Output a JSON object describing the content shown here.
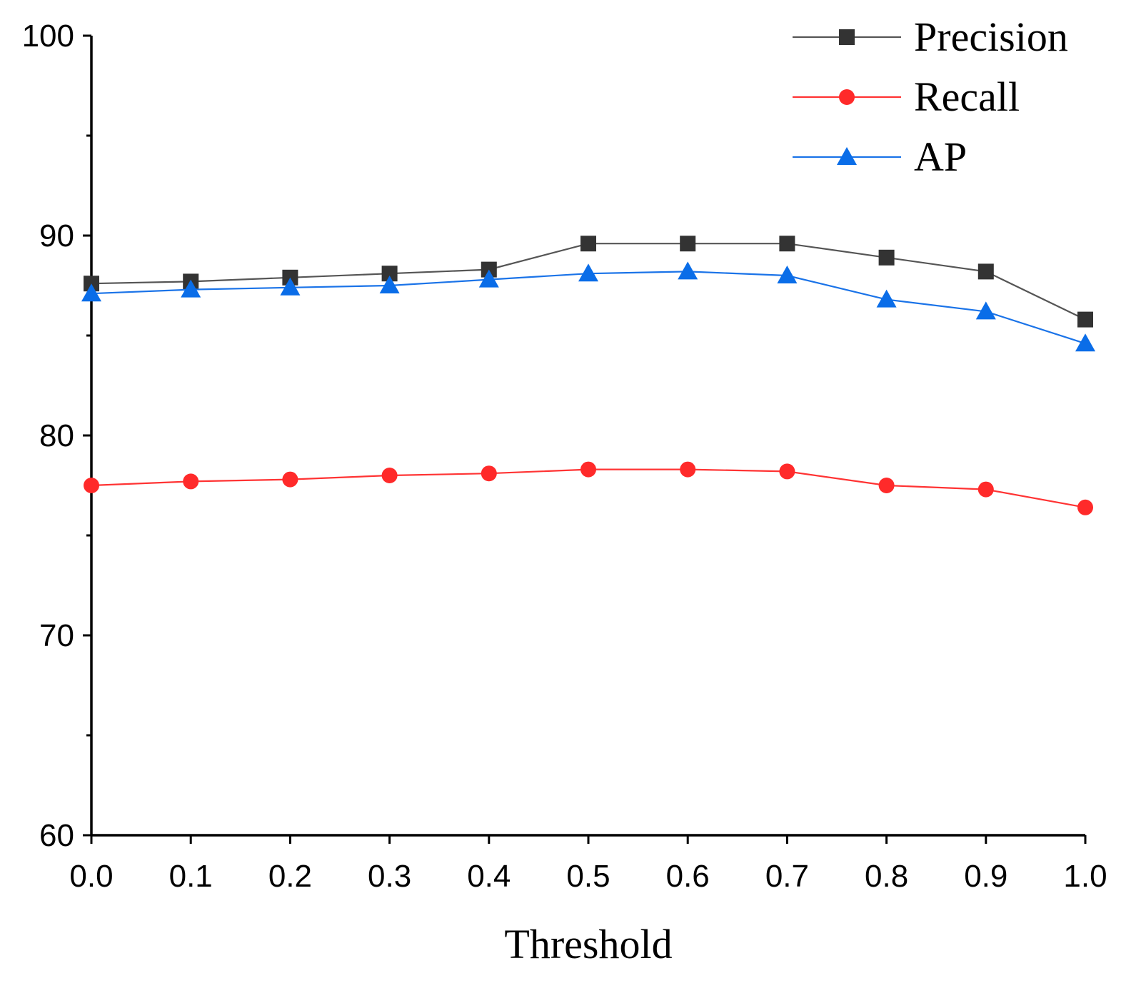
{
  "chart_data": {
    "type": "line",
    "xlabel": "Threshold",
    "ylabel": "",
    "xlim": [
      0.0,
      1.0
    ],
    "ylim": [
      60,
      100
    ],
    "x_ticks": [
      "0.0",
      "0.1",
      "0.2",
      "0.3",
      "0.4",
      "0.5",
      "0.6",
      "0.7",
      "0.8",
      "0.9",
      "1.0"
    ],
    "y_ticks": [
      "60",
      "70",
      "80",
      "90",
      "100"
    ],
    "y_minor_ticks": [
      65,
      75,
      85,
      95
    ],
    "grid": false,
    "legend_position": "top-right",
    "x": [
      0.0,
      0.1,
      0.2,
      0.3,
      0.4,
      0.5,
      0.6,
      0.7,
      0.8,
      0.9,
      1.0
    ],
    "series": [
      {
        "name": "Precision",
        "color": "#333333",
        "line_color": "#555555",
        "marker": "square",
        "values": [
          87.6,
          87.7,
          87.9,
          88.1,
          88.3,
          89.6,
          89.6,
          89.6,
          88.9,
          88.2,
          85.8
        ]
      },
      {
        "name": "Recall",
        "color": "#ff2a2a",
        "line_color": "#ff3333",
        "marker": "circle",
        "values": [
          77.5,
          77.7,
          77.8,
          78.0,
          78.1,
          78.3,
          78.3,
          78.2,
          77.5,
          77.3,
          76.4
        ]
      },
      {
        "name": "AP",
        "color": "#0a6de8",
        "line_color": "#1a73e8",
        "marker": "triangle",
        "values": [
          87.1,
          87.3,
          87.4,
          87.5,
          87.8,
          88.1,
          88.2,
          88.0,
          86.8,
          86.2,
          84.6
        ]
      }
    ]
  }
}
